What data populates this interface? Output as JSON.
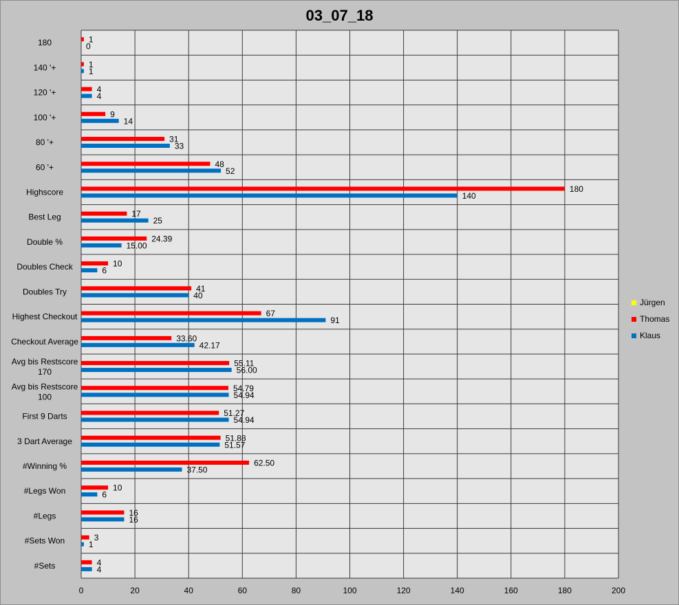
{
  "chart_data": {
    "type": "bar",
    "orientation": "horizontal",
    "title": "03_07_18",
    "xlabel": "",
    "ylabel": "",
    "xlim": [
      0,
      200
    ],
    "xticks": [
      0,
      20,
      40,
      60,
      80,
      100,
      120,
      140,
      160,
      180,
      200
    ],
    "grid": true,
    "legend_position": "right",
    "categories": [
      "180",
      "140 '+",
      "120 '+",
      "100 '+",
      "80 '+",
      "60 '+",
      "Highscore",
      "Best Leg",
      "Double %",
      "Doubles Check",
      "Doubles Try",
      "Highest Checkout",
      "Checkout Average",
      "Avg bis Restscore 170",
      "Avg bis Restscore 100",
      "First 9 Darts",
      "3 Dart Average",
      "#Winning %",
      "#Legs Won",
      "#Legs",
      "#Sets Won",
      "#Sets"
    ],
    "series": [
      {
        "name": "Jürgen",
        "color": "#ffff00",
        "values": [
          null,
          null,
          null,
          null,
          null,
          null,
          null,
          null,
          null,
          null,
          null,
          null,
          null,
          null,
          null,
          null,
          null,
          null,
          null,
          null,
          null,
          null
        ],
        "labels": []
      },
      {
        "name": "Thomas",
        "color": "#ff0000",
        "values": [
          1,
          1,
          4,
          9,
          31,
          48,
          180,
          17,
          24.39,
          10,
          41,
          67,
          33.6,
          55.11,
          54.79,
          51.27,
          51.88,
          62.5,
          10,
          16,
          3,
          4
        ],
        "labels": [
          "1",
          "1",
          "4",
          "9",
          "31",
          "48",
          "180",
          "17",
          "24.39",
          "10",
          "41",
          "67",
          "33.60",
          "55.11",
          "54.79",
          "51.27",
          "51.88",
          "62.50",
          "10",
          "16",
          "3",
          "4"
        ]
      },
      {
        "name": "Klaus",
        "color": "#0070c0",
        "values": [
          0,
          1,
          4,
          14,
          33,
          52,
          140,
          25,
          15.0,
          6,
          40,
          91,
          42.17,
          56.0,
          54.94,
          54.94,
          51.57,
          37.5,
          6,
          16,
          1,
          4
        ],
        "labels": [
          "0",
          "1",
          "4",
          "14",
          "33",
          "52",
          "140",
          "25",
          "15.00",
          "6",
          "40",
          "91",
          "42.17",
          "56.00",
          "54.94",
          "54.94",
          "51.57",
          "37.50",
          "6",
          "16",
          "1",
          "4"
        ]
      }
    ]
  }
}
